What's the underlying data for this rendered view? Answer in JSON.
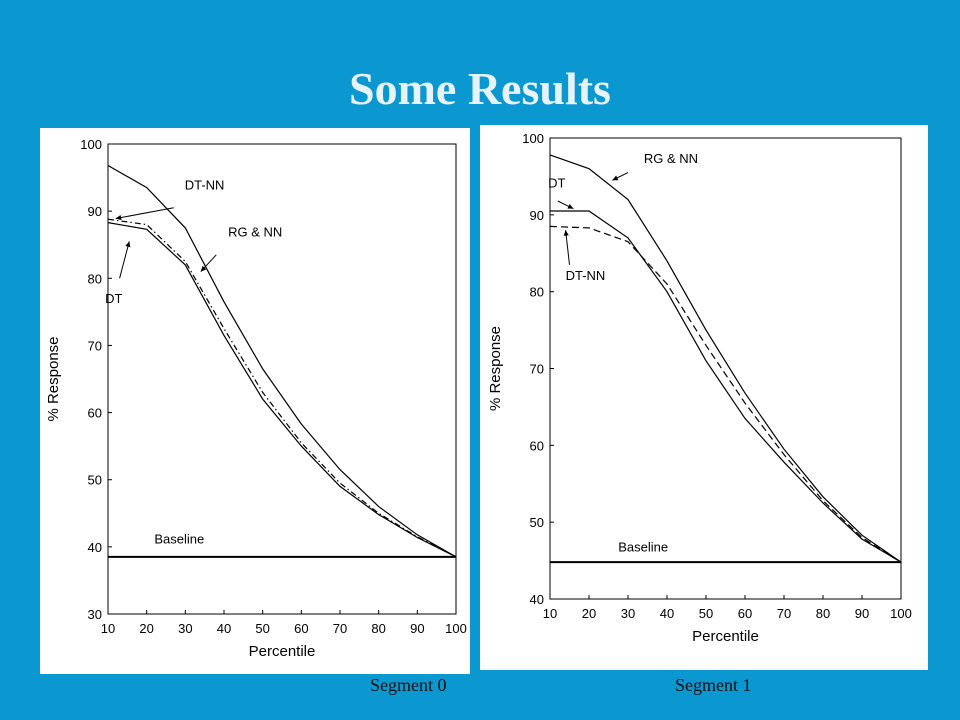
{
  "slide": {
    "title": "Some Results",
    "captions": [
      "Segment 0",
      "Segment 1"
    ]
  },
  "chart_data": [
    {
      "type": "line",
      "title": "",
      "xlabel": "Percentile",
      "ylabel": "% Response",
      "xlim": [
        10,
        100
      ],
      "ylim": [
        30,
        100
      ],
      "xticks": [
        10,
        20,
        30,
        40,
        50,
        60,
        70,
        80,
        90,
        100
      ],
      "yticks": [
        30,
        40,
        50,
        60,
        70,
        80,
        90,
        100
      ],
      "series": [
        {
          "name": "RG & NN",
          "style": "solid",
          "x": [
            10,
            20,
            30,
            40,
            50,
            60,
            70,
            80,
            90,
            100
          ],
          "y": [
            96.8,
            93.5,
            87.5,
            76.5,
            66.5,
            58.3,
            51.5,
            46.0,
            41.8,
            38.5
          ]
        },
        {
          "name": "DT-NN",
          "style": "dashdot",
          "x": [
            10,
            20,
            30,
            40,
            50,
            60,
            70,
            80,
            90,
            100
          ],
          "y": [
            88.8,
            88.0,
            82.5,
            72.5,
            63.0,
            55.5,
            49.5,
            45.0,
            41.5,
            38.5
          ]
        },
        {
          "name": "DT",
          "style": "solid",
          "x": [
            10,
            20,
            30,
            40,
            50,
            60,
            70,
            80,
            90,
            100
          ],
          "y": [
            88.3,
            87.3,
            82.0,
            71.5,
            62.0,
            55.0,
            49.0,
            44.8,
            41.4,
            38.5
          ]
        },
        {
          "name": "Baseline",
          "style": "solid-thick",
          "x": [
            10,
            100
          ],
          "y": [
            38.5,
            38.5
          ]
        }
      ],
      "annotations": [
        {
          "text": "DT-NN",
          "x": 27,
          "y": 92.3
        },
        {
          "text": "RG & NN",
          "x": 39,
          "y": 85.3
        },
        {
          "text": "DT",
          "x": 10.3,
          "y": 77.5
        },
        {
          "text": "Baseline",
          "x": 22,
          "y": 40.5
        }
      ]
    },
    {
      "type": "line",
      "title": "",
      "xlabel": "Percentile",
      "ylabel": "% Response",
      "xlim": [
        10,
        100
      ],
      "ylim": [
        40,
        100
      ],
      "xticks": [
        10,
        20,
        30,
        40,
        50,
        60,
        70,
        80,
        90,
        100
      ],
      "yticks": [
        40,
        50,
        60,
        70,
        80,
        90,
        100
      ],
      "series": [
        {
          "name": "RG & NN",
          "style": "solid",
          "x": [
            10,
            20,
            30,
            40,
            50,
            60,
            70,
            80,
            90,
            100
          ],
          "y": [
            97.8,
            96.0,
            92.0,
            84.0,
            75.0,
            66.8,
            59.5,
            53.3,
            48.3,
            44.8
          ]
        },
        {
          "name": "DT-NN",
          "style": "dashed",
          "x": [
            10,
            20,
            30,
            40,
            50,
            60,
            70,
            80,
            90,
            100
          ],
          "y": [
            88.5,
            88.3,
            86.5,
            81.0,
            73.0,
            65.5,
            58.8,
            52.8,
            48.0,
            44.8
          ]
        },
        {
          "name": "DT",
          "style": "solid",
          "x": [
            10,
            20,
            30,
            40,
            50,
            60,
            70,
            80,
            90,
            100
          ],
          "y": [
            90.5,
            90.5,
            87.0,
            80.0,
            71.0,
            63.5,
            57.8,
            52.5,
            47.8,
            44.8
          ]
        },
        {
          "name": "Baseline",
          "style": "solid-thick",
          "x": [
            10,
            100
          ],
          "y": [
            44.8,
            44.8
          ]
        }
      ],
      "annotations": [
        {
          "text": "RG & NN",
          "x": 31,
          "y": 96.2
        },
        {
          "text": "DT",
          "x": 10.8,
          "y": 93.3
        },
        {
          "text": "DT-NN",
          "x": 14,
          "y": 81.5
        },
        {
          "text": "Baseline",
          "x": 27.5,
          "y": 46.2
        }
      ]
    }
  ]
}
